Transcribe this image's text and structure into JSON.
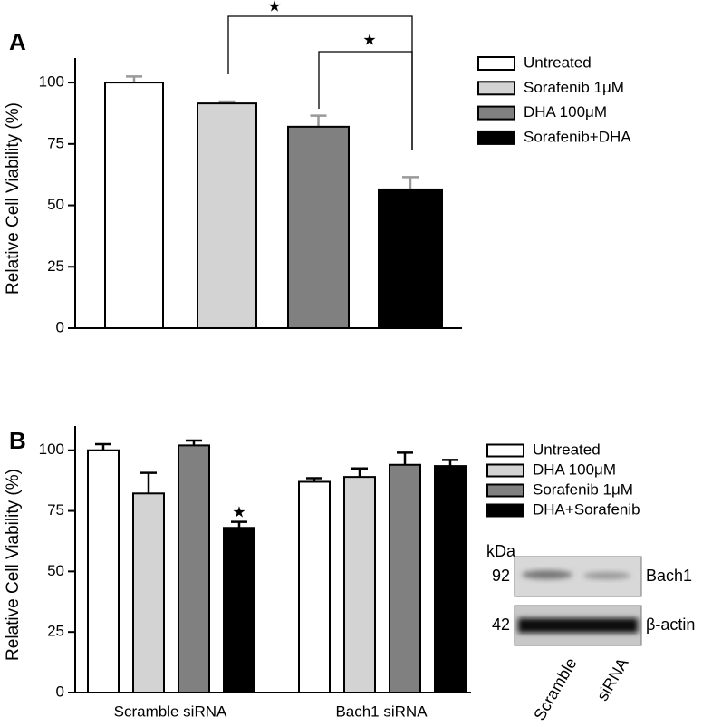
{
  "chart_data": [
    {
      "type": "bar",
      "panel": "A",
      "ylabel": "Relative Cell Viability (%)",
      "categories": [
        "Untreated",
        "Sorafenib 1μM",
        "DHA 100μM",
        "Sorafenib+DHA"
      ],
      "values": [
        100,
        91.5,
        82,
        56.5
      ],
      "errors": [
        2.5,
        0.8,
        4.5,
        5
      ],
      "colors": [
        "#ffffff",
        "#d3d3d3",
        "#808080",
        "#000000"
      ],
      "ylim": [
        0,
        110
      ],
      "yticks": [
        0,
        25,
        50,
        75,
        100
      ],
      "annotations": [
        "★",
        "★"
      ]
    },
    {
      "type": "grouped_bar",
      "panel": "B",
      "ylabel": "Relative Cell Viability (%)",
      "categories": [
        "Scramble siRNA",
        "Bach1 siRNA"
      ],
      "series": [
        {
          "name": "Untreated",
          "color": "#ffffff",
          "values": [
            100,
            87
          ],
          "errors": [
            2.5,
            1.5
          ]
        },
        {
          "name": "DHA 100μM",
          "color": "#d3d3d3",
          "values": [
            82.2,
            89
          ],
          "errors": [
            8.5,
            3.5
          ]
        },
        {
          "name": "Sorafenib 1μM",
          "color": "#808080",
          "values": [
            102,
            94
          ],
          "errors": [
            2,
            5
          ]
        },
        {
          "name": "DHA+Sorafenib",
          "color": "#000000",
          "values": [
            68,
            93.5
          ],
          "errors": [
            2.5,
            2.5
          ]
        }
      ],
      "ylim": [
        0,
        110
      ],
      "yticks": [
        0,
        25,
        50,
        75,
        100
      ],
      "annotations": [
        "★"
      ]
    }
  ],
  "blot": {
    "unit": "kDa",
    "markers": [
      "92",
      "42"
    ],
    "bands": [
      "Bach1",
      "β-actin"
    ],
    "lanes": [
      "Scramble",
      "siRNA"
    ]
  }
}
